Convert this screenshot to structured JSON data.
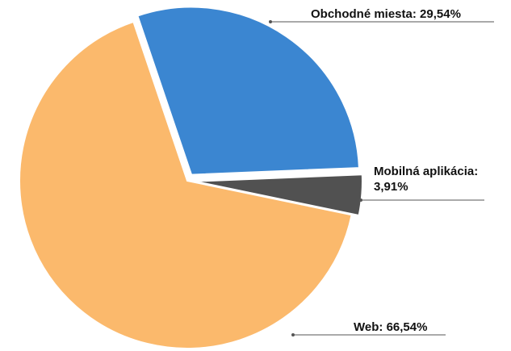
{
  "chart_data": {
    "type": "pie",
    "categories": [
      "Obchodné miesta",
      "Mobilná aplikácia",
      "Web"
    ],
    "values": [
      29.54,
      3.91,
      66.54
    ],
    "value_labels": [
      "29,54%",
      "3,91%",
      "66,54%"
    ],
    "colors": [
      "#3b86d1",
      "#515151",
      "#fbb96c"
    ]
  }
}
